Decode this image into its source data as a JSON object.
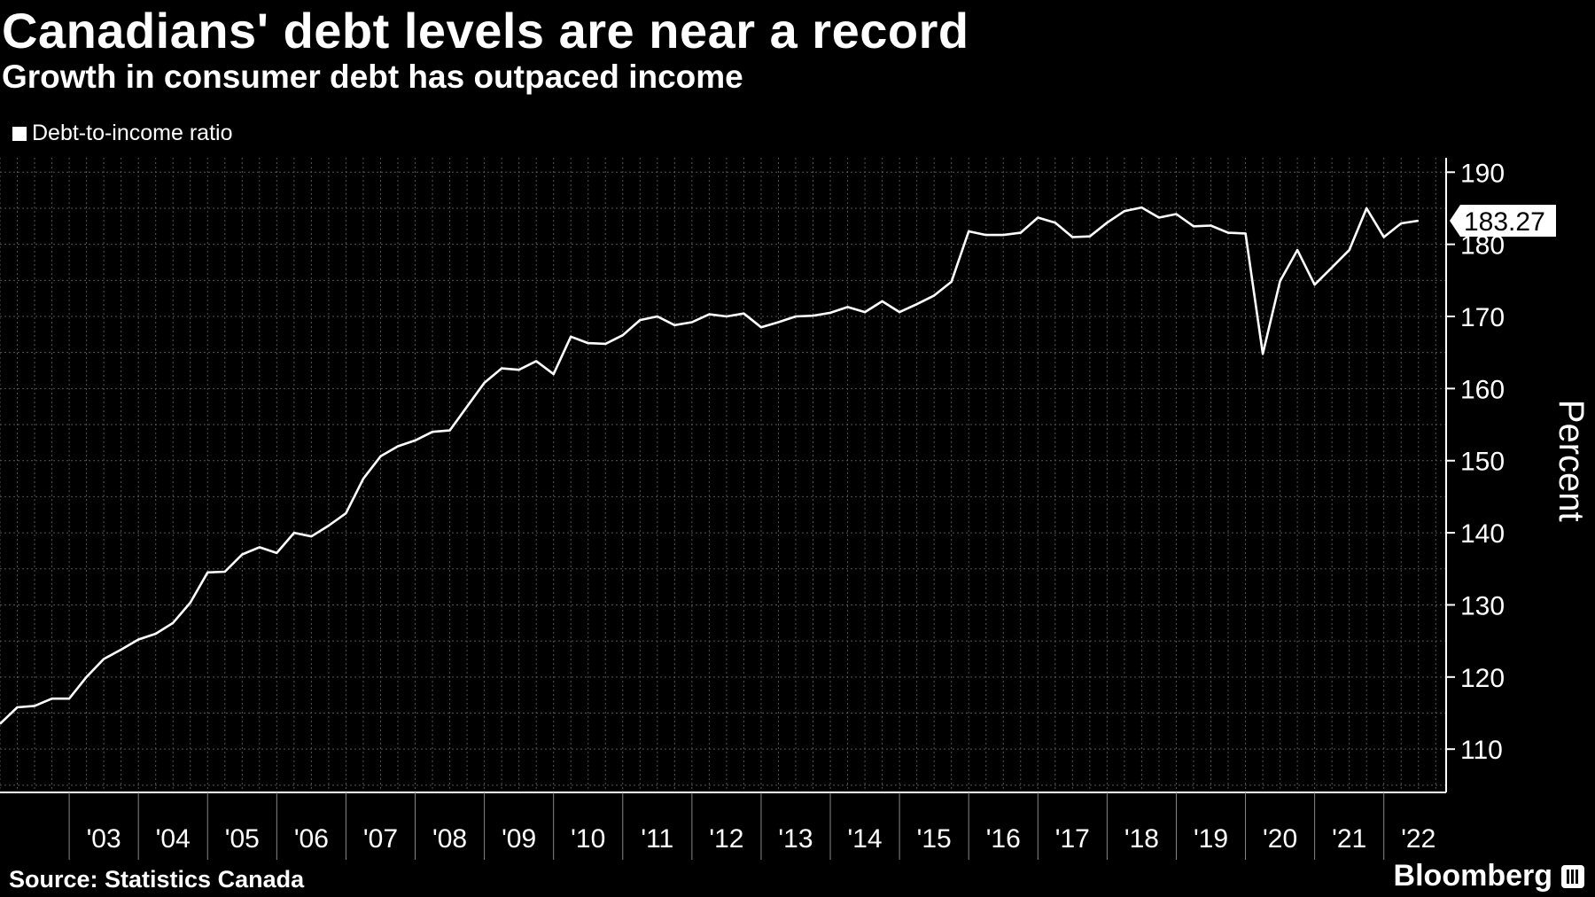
{
  "title": "Canadians' debt levels are near a record",
  "subtitle": "Growth in consumer debt has outpaced income",
  "source": "Source: Statistics Canada",
  "brand": "Bloomberg",
  "colors": {
    "background": "#000000",
    "line": "#ffffff",
    "grid": "#555555"
  },
  "chart_data": {
    "type": "line",
    "ylabel": "Percent",
    "ylim": [
      104,
      192
    ],
    "yticks": [
      110,
      120,
      130,
      140,
      150,
      160,
      170,
      180,
      190
    ],
    "xlim": [
      2002.0,
      2022.9
    ],
    "xticks": [
      "'03",
      "'04",
      "'05",
      "'06",
      "'07",
      "'08",
      "'09",
      "'10",
      "'11",
      "'12",
      "'13",
      "'14",
      "'15",
      "'16",
      "'17",
      "'18",
      "'19",
      "'20",
      "'21",
      "'22"
    ],
    "grid": true,
    "legend_position": "top-left",
    "last_value_label": "183.27",
    "series": [
      {
        "name": "Debt-to-income ratio",
        "x": [
          2002.0,
          2002.25,
          2002.5,
          2002.75,
          2003.0,
          2003.25,
          2003.5,
          2003.75,
          2004.0,
          2004.25,
          2004.5,
          2004.75,
          2005.0,
          2005.25,
          2005.5,
          2005.75,
          2006.0,
          2006.25,
          2006.5,
          2006.75,
          2007.0,
          2007.25,
          2007.5,
          2007.75,
          2008.0,
          2008.25,
          2008.5,
          2008.75,
          2009.0,
          2009.25,
          2009.5,
          2009.75,
          2010.0,
          2010.25,
          2010.5,
          2010.75,
          2011.0,
          2011.25,
          2011.5,
          2011.75,
          2012.0,
          2012.25,
          2012.5,
          2012.75,
          2013.0,
          2013.25,
          2013.5,
          2013.75,
          2014.0,
          2014.25,
          2014.5,
          2014.75,
          2015.0,
          2015.25,
          2015.5,
          2015.75,
          2016.0,
          2016.25,
          2016.5,
          2016.75,
          2017.0,
          2017.25,
          2017.5,
          2017.75,
          2018.0,
          2018.25,
          2018.5,
          2018.75,
          2019.0,
          2019.25,
          2019.5,
          2019.75,
          2020.0,
          2020.25,
          2020.5,
          2020.75,
          2021.0,
          2021.25,
          2021.5,
          2021.75,
          2022.0,
          2022.25,
          2022.5
        ],
        "values": [
          113.5,
          115.8,
          116.0,
          117.0,
          117.0,
          120.0,
          122.5,
          123.8,
          125.2,
          126.0,
          127.5,
          130.3,
          134.5,
          134.6,
          137.0,
          138.0,
          137.2,
          140.0,
          139.5,
          141.0,
          142.7,
          147.5,
          150.6,
          152.0,
          152.8,
          154.0,
          154.2,
          157.5,
          160.8,
          162.8,
          162.6,
          163.8,
          162.0,
          167.2,
          166.3,
          166.2,
          167.4,
          169.5,
          170.0,
          168.8,
          169.2,
          170.3,
          170.0,
          170.4,
          168.5,
          169.2,
          170.0,
          170.1,
          170.5,
          171.3,
          170.6,
          172.1,
          170.6,
          171.7,
          172.9,
          174.8,
          181.8,
          181.3,
          181.3,
          181.6,
          183.7,
          183.0,
          181.0,
          181.1,
          183.0,
          184.6,
          185.1,
          183.7,
          184.2,
          182.5,
          182.6,
          181.6,
          181.5,
          164.8,
          174.9,
          179.2,
          174.4,
          176.8,
          179.2,
          185.0,
          181.0,
          182.9,
          183.27
        ]
      }
    ]
  }
}
